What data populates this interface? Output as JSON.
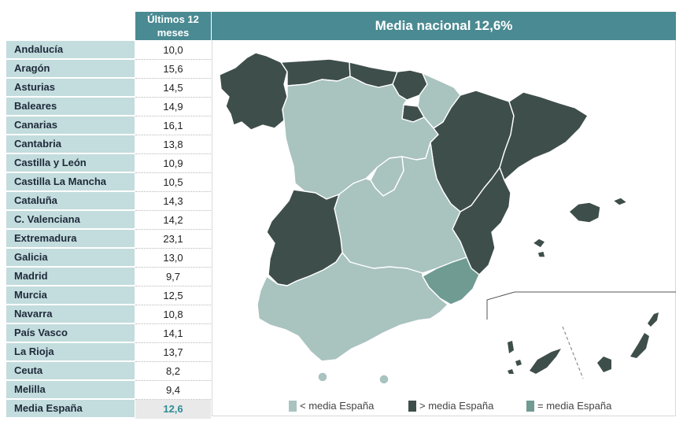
{
  "table": {
    "header": "Últimos 12 meses",
    "rows": [
      {
        "label": "Andalucía",
        "value": "10,0"
      },
      {
        "label": "Aragón",
        "value": "15,6"
      },
      {
        "label": "Asturias",
        "value": "14,5"
      },
      {
        "label": "Baleares",
        "value": "14,9"
      },
      {
        "label": "Canarias",
        "value": "16,1"
      },
      {
        "label": "Cantabria",
        "value": "13,8"
      },
      {
        "label": "Castilla y León",
        "value": "10,9"
      },
      {
        "label": "Castilla La Mancha",
        "value": "10,5"
      },
      {
        "label": "Cataluña",
        "value": "14,3"
      },
      {
        "label": "C. Valenciana",
        "value": "14,2"
      },
      {
        "label": "Extremadura",
        "value": "23,1"
      },
      {
        "label": "Galicia",
        "value": "13,0"
      },
      {
        "label": "Madrid",
        "value": "9,7"
      },
      {
        "label": "Murcia",
        "value": "12,5"
      },
      {
        "label": "Navarra",
        "value": "10,8"
      },
      {
        "label": "País Vasco",
        "value": "14,1"
      },
      {
        "label": "La Rioja",
        "value": "13,7"
      },
      {
        "label": "Ceuta",
        "value": "8,2"
      },
      {
        "label": "Melilla",
        "value": "9,4"
      }
    ],
    "total": {
      "label": "Media España",
      "value": "12,6"
    }
  },
  "map": {
    "title": "Media nacional 12,6%",
    "legend": [
      {
        "label": "< media España",
        "color": "#a9c3bf"
      },
      {
        "label": "> media España",
        "color": "#3e4e4b"
      },
      {
        "label": "= media España",
        "color": "#6f9b93"
      }
    ]
  },
  "chart_data": {
    "type": "table",
    "title": "Media nacional 12,6%",
    "columns": [
      "Últimos 12 meses"
    ],
    "categories": [
      "Andalucía",
      "Aragón",
      "Asturias",
      "Baleares",
      "Canarias",
      "Cantabria",
      "Castilla y León",
      "Castilla La Mancha",
      "Cataluña",
      "C. Valenciana",
      "Extremadura",
      "Galicia",
      "Madrid",
      "Murcia",
      "Navarra",
      "País Vasco",
      "La Rioja",
      "Ceuta",
      "Melilla",
      "Media España"
    ],
    "values": [
      10.0,
      15.6,
      14.5,
      14.9,
      16.1,
      13.8,
      10.9,
      10.5,
      14.3,
      14.2,
      23.1,
      13.0,
      9.7,
      12.5,
      10.8,
      14.1,
      13.7,
      8.2,
      9.4,
      12.6
    ]
  }
}
